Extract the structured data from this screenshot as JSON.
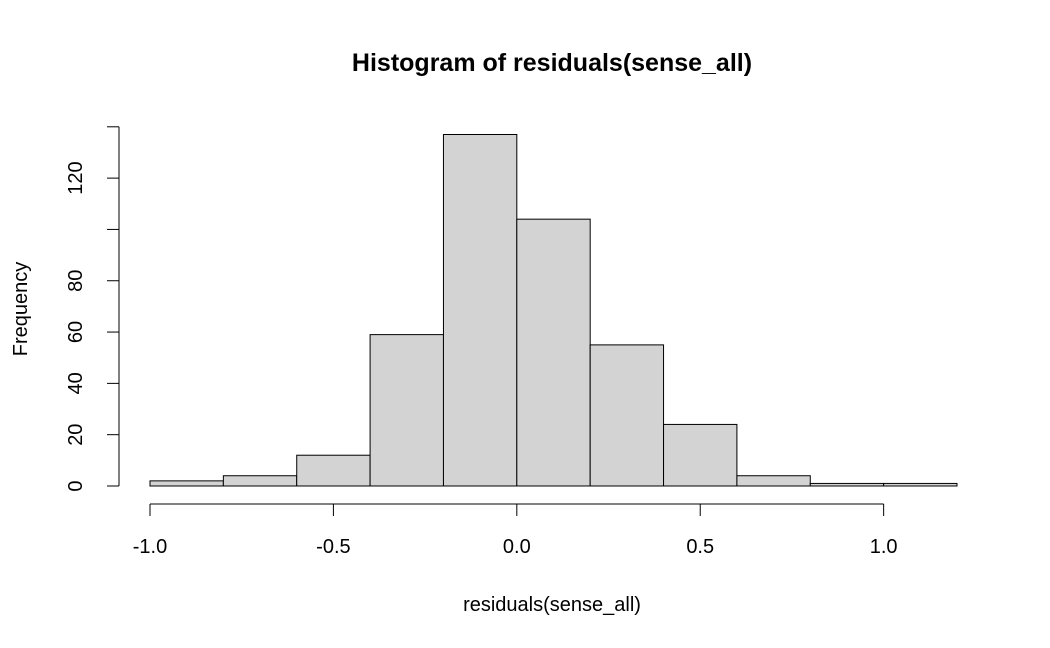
{
  "chart_data": {
    "type": "bar",
    "title": "Histogram of residuals(sense_all)",
    "xlabel": "residuals(sense_all)",
    "ylabel": "Frequency",
    "bins": [
      {
        "from": -1.0,
        "to": -0.8,
        "count": 2
      },
      {
        "from": -0.8,
        "to": -0.6,
        "count": 4
      },
      {
        "from": -0.6,
        "to": -0.4,
        "count": 12
      },
      {
        "from": -0.4,
        "to": -0.2,
        "count": 59
      },
      {
        "from": -0.2,
        "to": 0.0,
        "count": 137
      },
      {
        "from": 0.0,
        "to": 0.2,
        "count": 104
      },
      {
        "from": 0.2,
        "to": 0.4,
        "count": 55
      },
      {
        "from": 0.4,
        "to": 0.6,
        "count": 24
      },
      {
        "from": 0.6,
        "to": 0.8,
        "count": 4
      },
      {
        "from": 0.8,
        "to": 1.0,
        "count": 1
      },
      {
        "from": 1.0,
        "to": 1.2,
        "count": 1
      }
    ],
    "xlim": [
      -1.0,
      1.2
    ],
    "ylim": [
      0,
      140
    ],
    "x_ticks": [
      {
        "value": -1.0,
        "label": "-1.0"
      },
      {
        "value": -0.5,
        "label": "-0.5"
      },
      {
        "value": 0.0,
        "label": "0.0"
      },
      {
        "value": 0.5,
        "label": "0.5"
      },
      {
        "value": 1.0,
        "label": "1.0"
      }
    ],
    "y_ticks": [
      {
        "value": 0,
        "label": "0"
      },
      {
        "value": 20,
        "label": "20"
      },
      {
        "value": 40,
        "label": "40"
      },
      {
        "value": 60,
        "label": "60"
      },
      {
        "value": 80,
        "label": "80"
      },
      {
        "value": 100,
        "label": ""
      },
      {
        "value": 120,
        "label": "120"
      },
      {
        "value": 140,
        "label": ""
      }
    ],
    "bar_fill": "#d3d3d3",
    "bar_stroke": "#000000",
    "grid": false
  }
}
